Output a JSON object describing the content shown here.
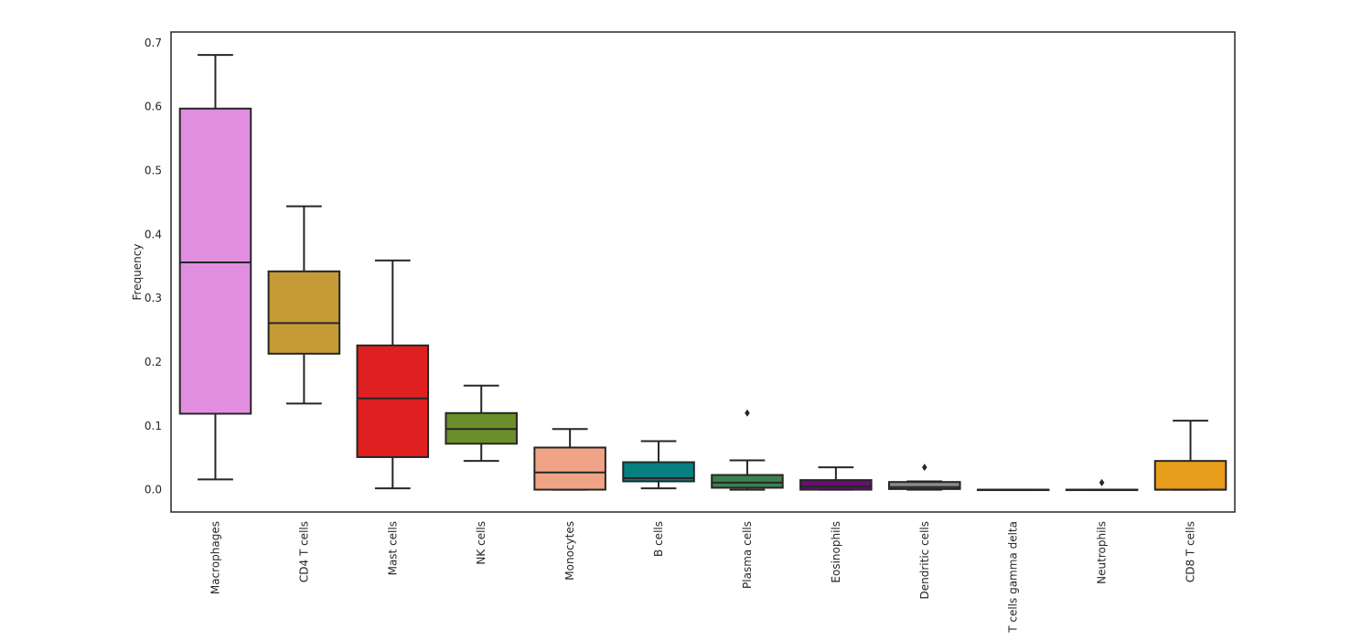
{
  "chart_data": {
    "type": "box",
    "title": "",
    "xlabel": "",
    "ylabel": "Frequency",
    "ylim": [
      -0.035,
      0.717
    ],
    "yticks": [
      0.0,
      0.1,
      0.2,
      0.3,
      0.4,
      0.5,
      0.6,
      0.7
    ],
    "ytick_labels": [
      "0.0",
      "0.1",
      "0.2",
      "0.3",
      "0.4",
      "0.5",
      "0.6",
      "0.7"
    ],
    "grid": false,
    "x_tick_rotation": "vertical",
    "categories": [
      "Macrophages",
      "CD4 T cells",
      "Mast cells",
      "NK cells",
      "Monocytes",
      "B cells",
      "Plasma cells",
      "Eosinophils",
      "Dendritic cells",
      "T cells gamma delta",
      "Neutrophils",
      "CD8 T cells"
    ],
    "boxes": [
      {
        "category": "Macrophages",
        "color": "#E28EE0",
        "whisker_low": 0.016,
        "q1": 0.119,
        "median": 0.356,
        "q3": 0.597,
        "whisker_high": 0.681,
        "outliers": []
      },
      {
        "category": "CD4 T cells",
        "color": "#C49B37",
        "whisker_low": 0.135,
        "q1": 0.213,
        "median": 0.261,
        "q3": 0.342,
        "whisker_high": 0.444,
        "outliers": []
      },
      {
        "category": "Mast cells",
        "color": "#E02020",
        "whisker_low": 0.002,
        "q1": 0.051,
        "median": 0.143,
        "q3": 0.226,
        "whisker_high": 0.359,
        "outliers": []
      },
      {
        "category": "NK cells",
        "color": "#6B8E2A",
        "whisker_low": 0.045,
        "q1": 0.072,
        "median": 0.095,
        "q3": 0.12,
        "whisker_high": 0.163,
        "outliers": []
      },
      {
        "category": "Monocytes",
        "color": "#F0A486",
        "whisker_low": 0.0,
        "q1": 0.0,
        "median": 0.027,
        "q3": 0.066,
        "whisker_high": 0.095,
        "outliers": []
      },
      {
        "category": "B cells",
        "color": "#087F80",
        "whisker_low": 0.002,
        "q1": 0.013,
        "median": 0.018,
        "q3": 0.043,
        "whisker_high": 0.076,
        "outliers": []
      },
      {
        "category": "Plasma cells",
        "color": "#3E7F4F",
        "whisker_low": 0.0,
        "q1": 0.003,
        "median": 0.011,
        "q3": 0.023,
        "whisker_high": 0.046,
        "outliers": [
          0.12
        ]
      },
      {
        "category": "Eosinophils",
        "color": "#6A0E70",
        "whisker_low": 0.0,
        "q1": 0.0,
        "median": 0.005,
        "q3": 0.015,
        "whisker_high": 0.035,
        "outliers": []
      },
      {
        "category": "Dendritic cells",
        "color": "#8A8A8A",
        "whisker_low": 0.0,
        "q1": 0.001,
        "median": 0.004,
        "q3": 0.012,
        "whisker_high": 0.013,
        "outliers": [
          0.035
        ]
      },
      {
        "category": "T cells gamma delta",
        "color": "#3F3F3F",
        "whisker_low": 0.0,
        "q1": 0.0,
        "median": 0.0,
        "q3": 0.0,
        "whisker_high": 0.0,
        "outliers": []
      },
      {
        "category": "Neutrophils",
        "color": "#3F3F3F",
        "whisker_low": 0.0,
        "q1": 0.0,
        "median": 0.0,
        "q3": 0.0,
        "whisker_high": 0.0,
        "outliers": [
          0.011
        ]
      },
      {
        "category": "CD8 T cells",
        "color": "#E99D1C",
        "whisker_low": 0.0,
        "q1": 0.0,
        "median": 0.0,
        "q3": 0.045,
        "whisker_high": 0.108,
        "outliers": []
      }
    ]
  }
}
